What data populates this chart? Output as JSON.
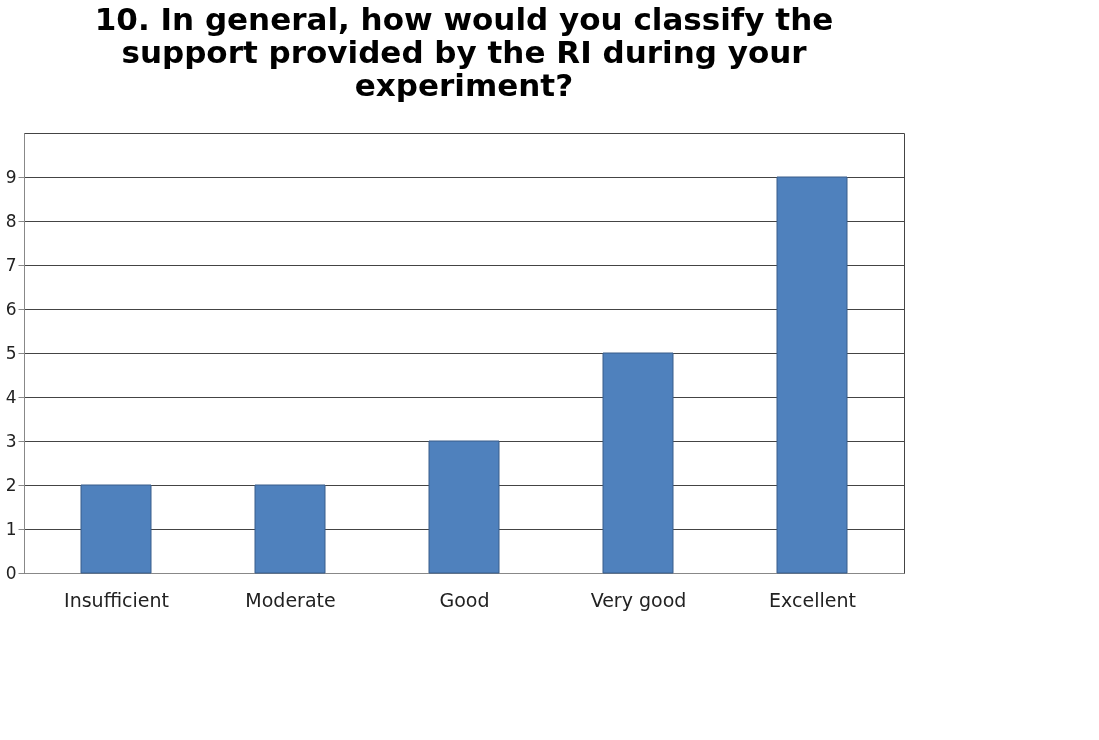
{
  "chart_data": {
    "type": "bar",
    "title": "10. In general, how would you classify the support provided by the RI during your experiment?",
    "categories": [
      "Insufficient",
      "Moderate",
      "Good",
      "Very good",
      "Excellent"
    ],
    "values": [
      2,
      2,
      3,
      5,
      9
    ],
    "color": "#4f81bd",
    "ylim": [
      0,
      10
    ],
    "yticks": [
      0,
      1,
      2,
      3,
      4,
      5,
      6,
      7,
      8,
      9
    ],
    "grid": "y"
  }
}
